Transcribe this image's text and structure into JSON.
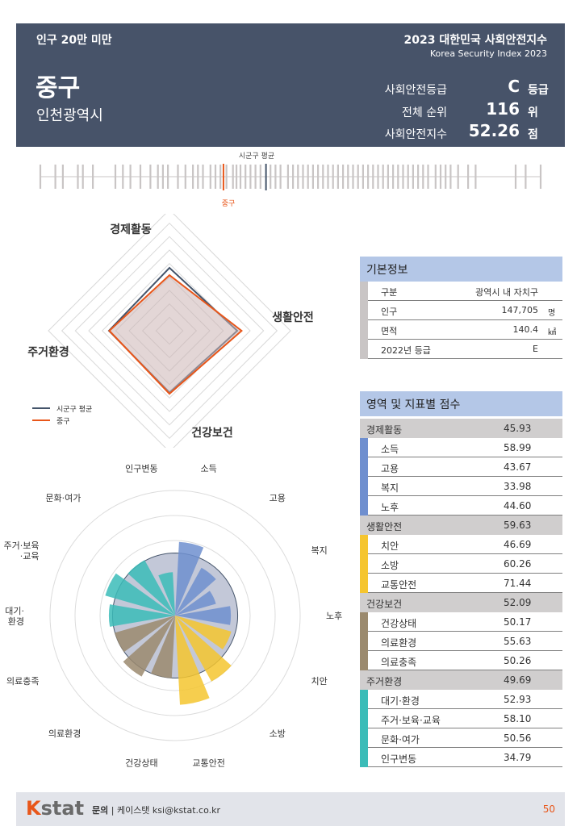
{
  "header": {
    "category": "인구 20만 미만",
    "name": "중구",
    "region": "인천광역시",
    "title": "2023 대한민국 사회안전지수",
    "subtitle": "Korea Security Index 2023",
    "rows": [
      {
        "label": "사회안전등급",
        "value": "C",
        "unit": "등급"
      },
      {
        "label": "전체 순위",
        "value": "116",
        "unit": "위"
      },
      {
        "label": "사회안전지수",
        "value": "52.26",
        "unit": "점"
      }
    ]
  },
  "rankbar": {
    "avg_label": "시군구 평균",
    "self_label": "중구",
    "avg_position": 0.451,
    "self_position": 0.366,
    "colors": {
      "tick": "#c9c5c5",
      "avg": "#44546a",
      "self": "#e8561a"
    }
  },
  "radar": {
    "axes": [
      "경제활동",
      "생활안전",
      "건강보건",
      "주거환경"
    ],
    "legend": [
      {
        "label": "시군구 평균",
        "color": "#44546a"
      },
      {
        "label": "중구",
        "color": "#e8561a"
      }
    ]
  },
  "polar": {
    "labels": [
      "소득",
      "고용",
      "복지",
      "노후",
      "치안",
      "소방",
      "교통안전",
      "건강상태",
      "의료환경",
      "의료충족",
      "대기·\n환경",
      "주거·보육\n·교육",
      "문화·여가",
      "인구변동"
    ]
  },
  "basic": {
    "title": "기본정보",
    "rows": [
      {
        "key": "구분",
        "value": "광역시 내 자치구",
        "unit": ""
      },
      {
        "key": "인구",
        "value": "147,705",
        "unit": "명"
      },
      {
        "key": "면적",
        "value": "140.4",
        "unit": "㎢"
      },
      {
        "key": "2022년 등급",
        "value": "E",
        "unit": ""
      }
    ]
  },
  "scores": {
    "title": "영역 및 지표별 점수",
    "domains": [
      {
        "name": "경제활동",
        "score": "45.93",
        "color": "#6f8fcf",
        "items": [
          {
            "name": "소득",
            "score": "58.99"
          },
          {
            "name": "고용",
            "score": "43.67"
          },
          {
            "name": "복지",
            "score": "33.98"
          },
          {
            "name": "노후",
            "score": "44.60"
          }
        ]
      },
      {
        "name": "생활안전",
        "score": "59.63",
        "color": "#f5c52f",
        "items": [
          {
            "name": "치안",
            "score": "46.69"
          },
          {
            "name": "소방",
            "score": "60.26"
          },
          {
            "name": "교통안전",
            "score": "71.44"
          }
        ]
      },
      {
        "name": "건강보건",
        "score": "52.09",
        "color": "#9b8a6e",
        "items": [
          {
            "name": "건강상태",
            "score": "50.17"
          },
          {
            "name": "의료환경",
            "score": "55.63"
          },
          {
            "name": "의료충족",
            "score": "50.26"
          }
        ]
      },
      {
        "name": "주거환경",
        "score": "49.69",
        "color": "#3bbcb8",
        "items": [
          {
            "name": "대기·환경",
            "score": "52.93"
          },
          {
            "name": "주거·보육·교육",
            "score": "58.10"
          },
          {
            "name": "문화·여가",
            "score": "50.56"
          },
          {
            "name": "인구변동",
            "score": "34.79"
          }
        ]
      }
    ]
  },
  "chart_data": [
    {
      "type": "radar",
      "categories": [
        "경제활동",
        "생활안전",
        "건강보건",
        "주거환경"
      ],
      "series": [
        {
          "name": "시군구 평균",
          "values": [
            52,
            56,
            51,
            50
          ]
        },
        {
          "name": "중구",
          "values": [
            45.93,
            59.63,
            52.09,
            49.69
          ]
        }
      ],
      "range": [
        0,
        100
      ]
    },
    {
      "type": "polar-bar",
      "categories": [
        "소득",
        "고용",
        "복지",
        "노후",
        "치안",
        "소방",
        "교통안전",
        "건강상태",
        "의료환경",
        "의료충족",
        "대기·환경",
        "주거·보육·교육",
        "문화·여가",
        "인구변동"
      ],
      "values": [
        58.99,
        43.67,
        33.98,
        44.6,
        46.69,
        60.26,
        71.44,
        50.17,
        55.63,
        50.26,
        52.93,
        58.1,
        50.56,
        34.79
      ],
      "colors": [
        "#6f8fcf",
        "#6f8fcf",
        "#6f8fcf",
        "#6f8fcf",
        "#f5c52f",
        "#f5c52f",
        "#f5c52f",
        "#9b8a6e",
        "#9b8a6e",
        "#9b8a6e",
        "#3bbcb8",
        "#3bbcb8",
        "#3bbcb8",
        "#3bbcb8"
      ],
      "average": [
        50,
        50,
        50,
        50,
        50,
        50,
        50,
        50,
        50,
        50,
        50,
        50,
        50,
        50
      ],
      "range": [
        0,
        100
      ]
    }
  ],
  "footer": {
    "logo_k": "K",
    "logo_rest": "stat",
    "contact_label": "문의",
    "contact": "| 케이스탯 ksi@kstat.co.kr",
    "page": "50"
  }
}
